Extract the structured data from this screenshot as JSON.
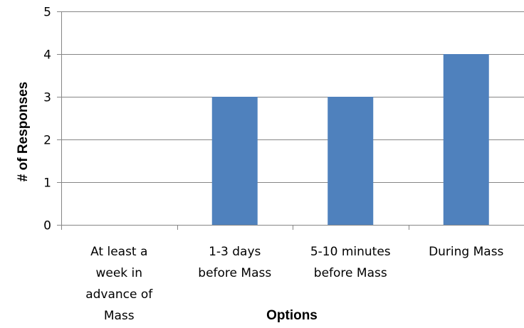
{
  "chart_data": {
    "type": "bar",
    "title": "",
    "xlabel": "Options",
    "ylabel": "# of Responses",
    "categories": [
      [
        "At least a",
        "week in",
        "advance of",
        "Mass"
      ],
      [
        "1-3 days",
        "before Mass"
      ],
      [
        "5-10 minutes",
        "before Mass"
      ],
      [
        "During Mass"
      ]
    ],
    "values": [
      0,
      3,
      3,
      4
    ],
    "ylim": [
      0,
      5
    ],
    "yticks": [
      "0",
      "1",
      "2",
      "3",
      "4",
      "5"
    ],
    "grid": true,
    "legend": "none",
    "bar_color": "#4F81BD",
    "grid_color": "#868686"
  }
}
